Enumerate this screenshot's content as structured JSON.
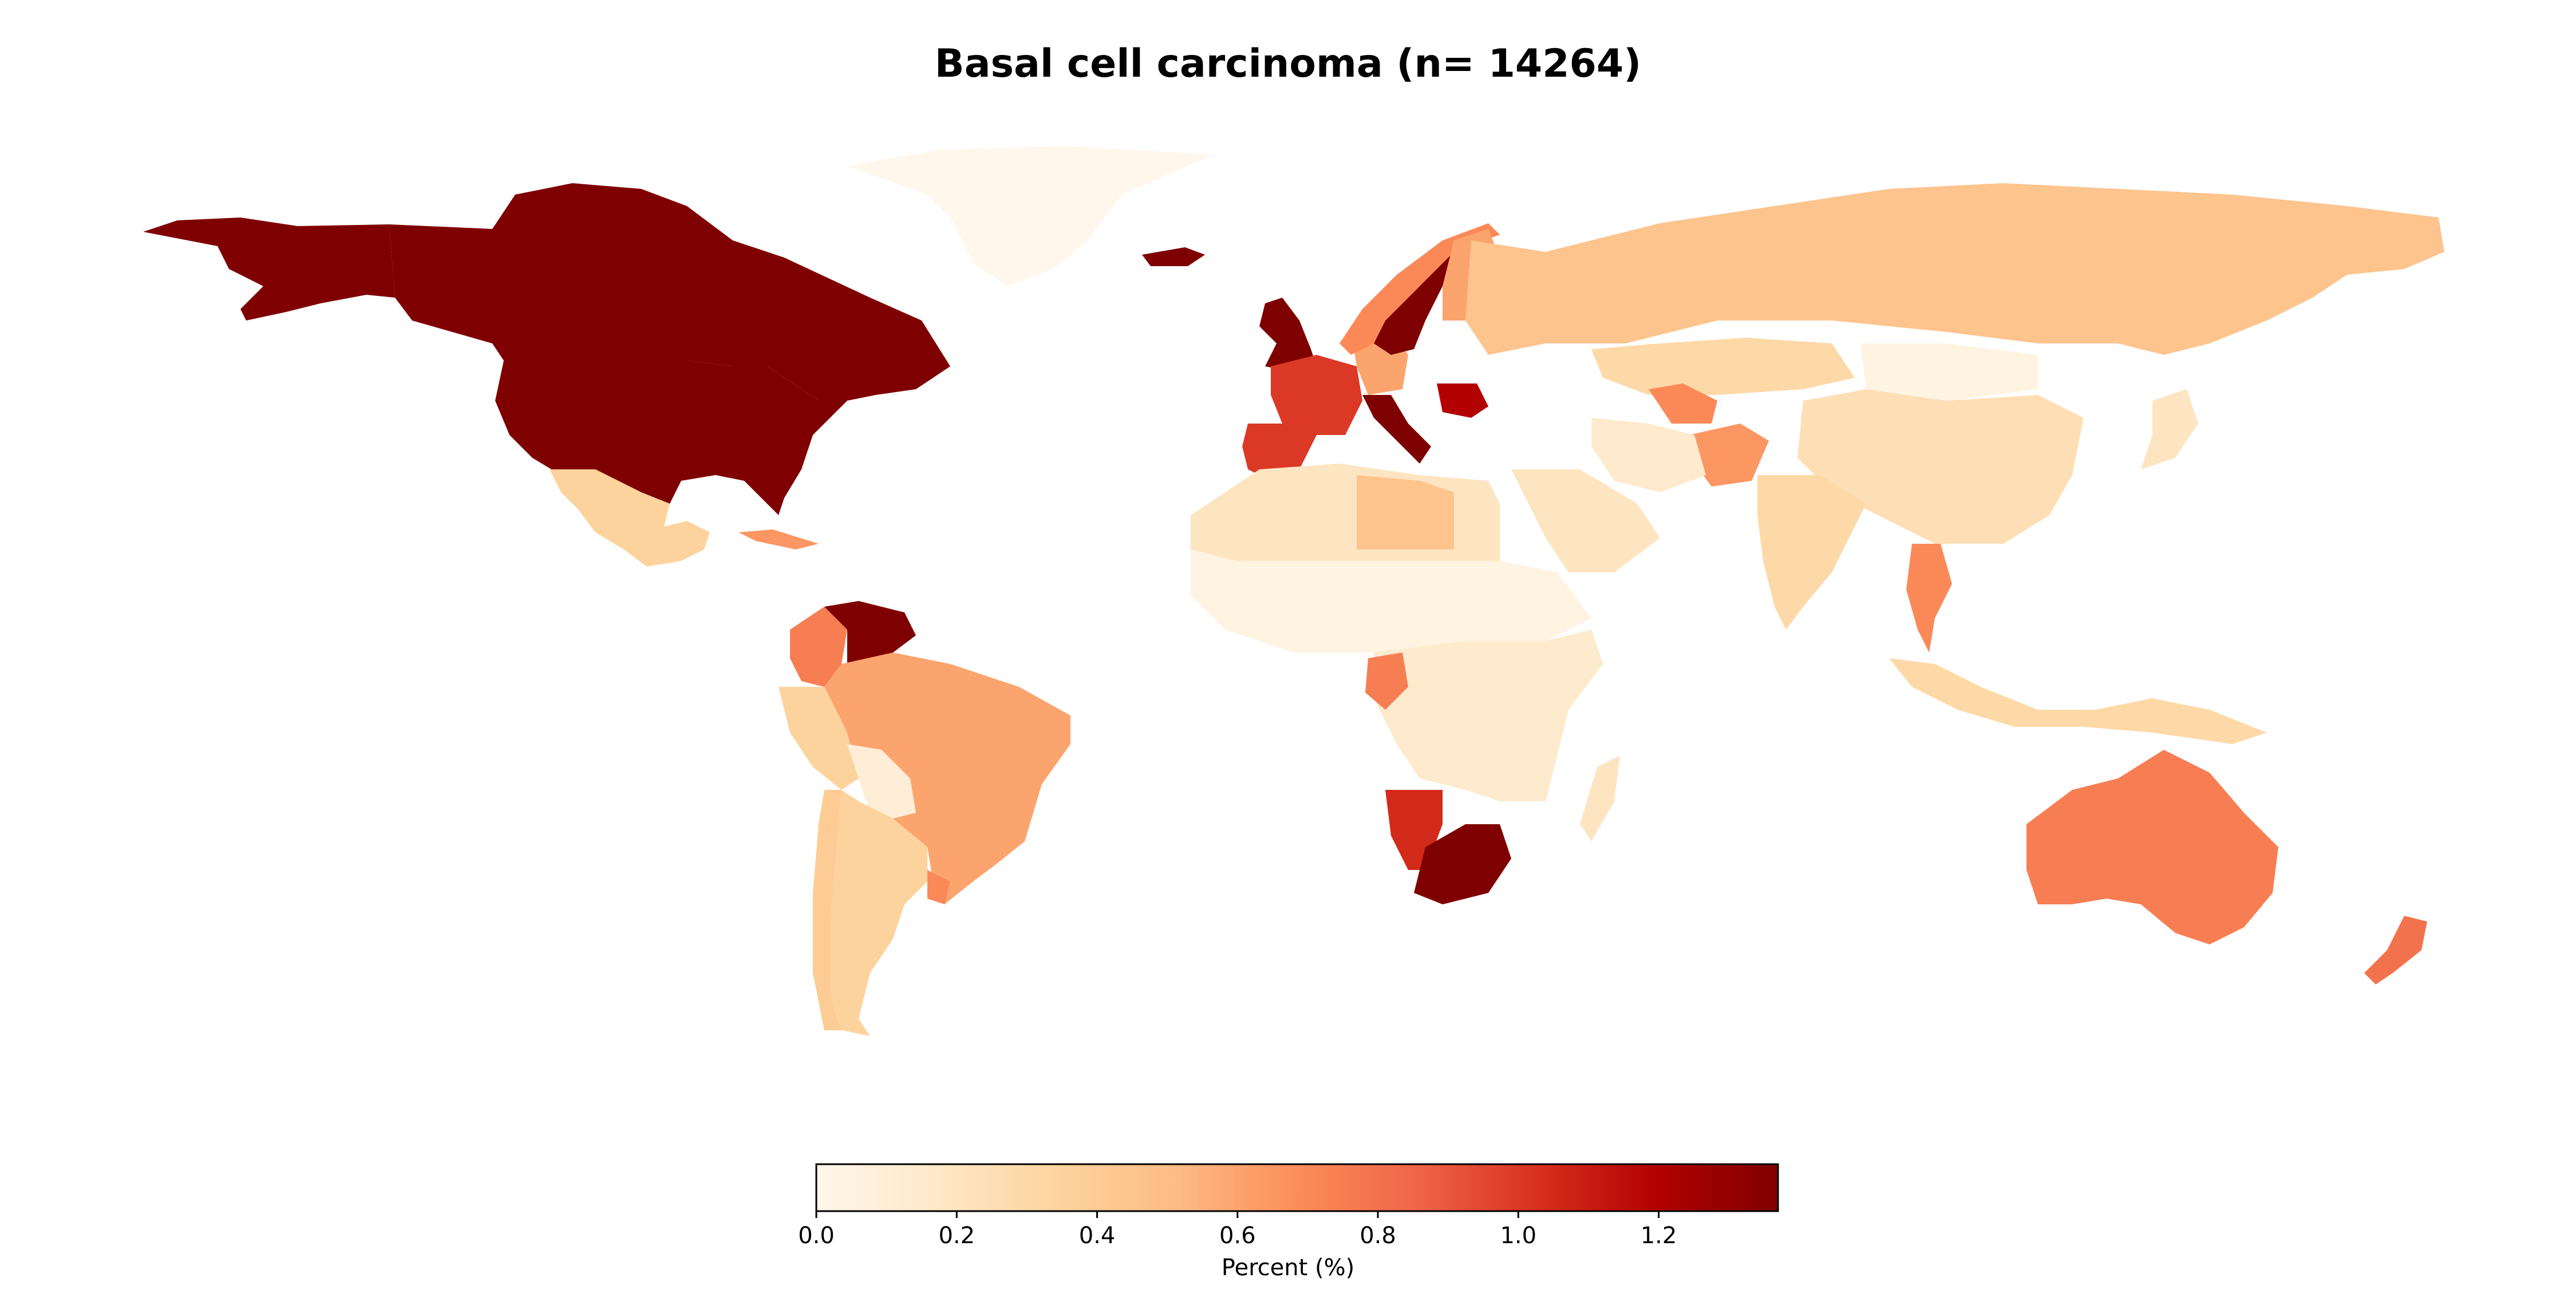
{
  "title": "Basal cell carcinoma (n= 14264)",
  "colorbar": {
    "label": "Percent (%)",
    "min": 0.0,
    "max": 1.37,
    "ticks": [
      "0.0",
      "0.2",
      "0.4",
      "0.6",
      "0.8",
      "1.0",
      "1.2"
    ],
    "colormap": "OrRd",
    "stops": [
      "#fff7ec",
      "#fee8c8",
      "#fdd49e",
      "#fdbb84",
      "#fc8d59",
      "#ef6548",
      "#d7301f",
      "#b30000",
      "#7f0000"
    ]
  },
  "regions": [
    {
      "name": "United States",
      "value": 1.37
    },
    {
      "name": "Canada",
      "value": 1.37
    },
    {
      "name": "Alaska",
      "value": 1.37
    },
    {
      "name": "Greenland",
      "value": 0.0
    },
    {
      "name": "Iceland",
      "value": 1.37
    },
    {
      "name": "Mexico",
      "value": 0.35
    },
    {
      "name": "Cuba",
      "value": 0.65
    },
    {
      "name": "Colombia",
      "value": 0.75
    },
    {
      "name": "Venezuela",
      "value": 1.37
    },
    {
      "name": "Brazil",
      "value": 0.6
    },
    {
      "name": "Peru",
      "value": 0.35
    },
    {
      "name": "Bolivia",
      "value": 0.1
    },
    {
      "name": "Argentina",
      "value": 0.35
    },
    {
      "name": "Chile",
      "value": 0.4
    },
    {
      "name": "Uruguay",
      "value": 0.7
    },
    {
      "name": "United Kingdom",
      "value": 1.37
    },
    {
      "name": "France",
      "value": 1.0
    },
    {
      "name": "Spain",
      "value": 1.0
    },
    {
      "name": "Germany",
      "value": 0.6
    },
    {
      "name": "Italy",
      "value": 1.37
    },
    {
      "name": "Sweden",
      "value": 1.37
    },
    {
      "name": "Norway",
      "value": 0.7
    },
    {
      "name": "Finland",
      "value": 0.6
    },
    {
      "name": "Romania",
      "value": 1.2
    },
    {
      "name": "Russia",
      "value": 0.45
    },
    {
      "name": "Kazakhstan",
      "value": 0.3
    },
    {
      "name": "China",
      "value": 0.25
    },
    {
      "name": "Mongolia",
      "value": 0.05
    },
    {
      "name": "India",
      "value": 0.3
    },
    {
      "name": "Afghanistan",
      "value": 0.65
    },
    {
      "name": "Turkmenistan",
      "value": 0.7
    },
    {
      "name": "Iran",
      "value": 0.15
    },
    {
      "name": "Saudi Arabia",
      "value": 0.2
    },
    {
      "name": "North Africa",
      "value": 0.2
    },
    {
      "name": "Libya",
      "value": 0.45
    },
    {
      "name": "Sahel",
      "value": 0.05
    },
    {
      "name": "Central Africa",
      "value": 0.15
    },
    {
      "name": "Gabon",
      "value": 0.75
    },
    {
      "name": "Namibia",
      "value": 1.05
    },
    {
      "name": "South Africa",
      "value": 1.37
    },
    {
      "name": "Madagascar",
      "value": 0.2
    },
    {
      "name": "Thailand",
      "value": 0.7
    },
    {
      "name": "Indonesia",
      "value": 0.3
    },
    {
      "name": "Japan",
      "value": 0.2
    },
    {
      "name": "Australia",
      "value": 0.75
    },
    {
      "name": "New Zealand",
      "value": 0.8
    }
  ]
}
